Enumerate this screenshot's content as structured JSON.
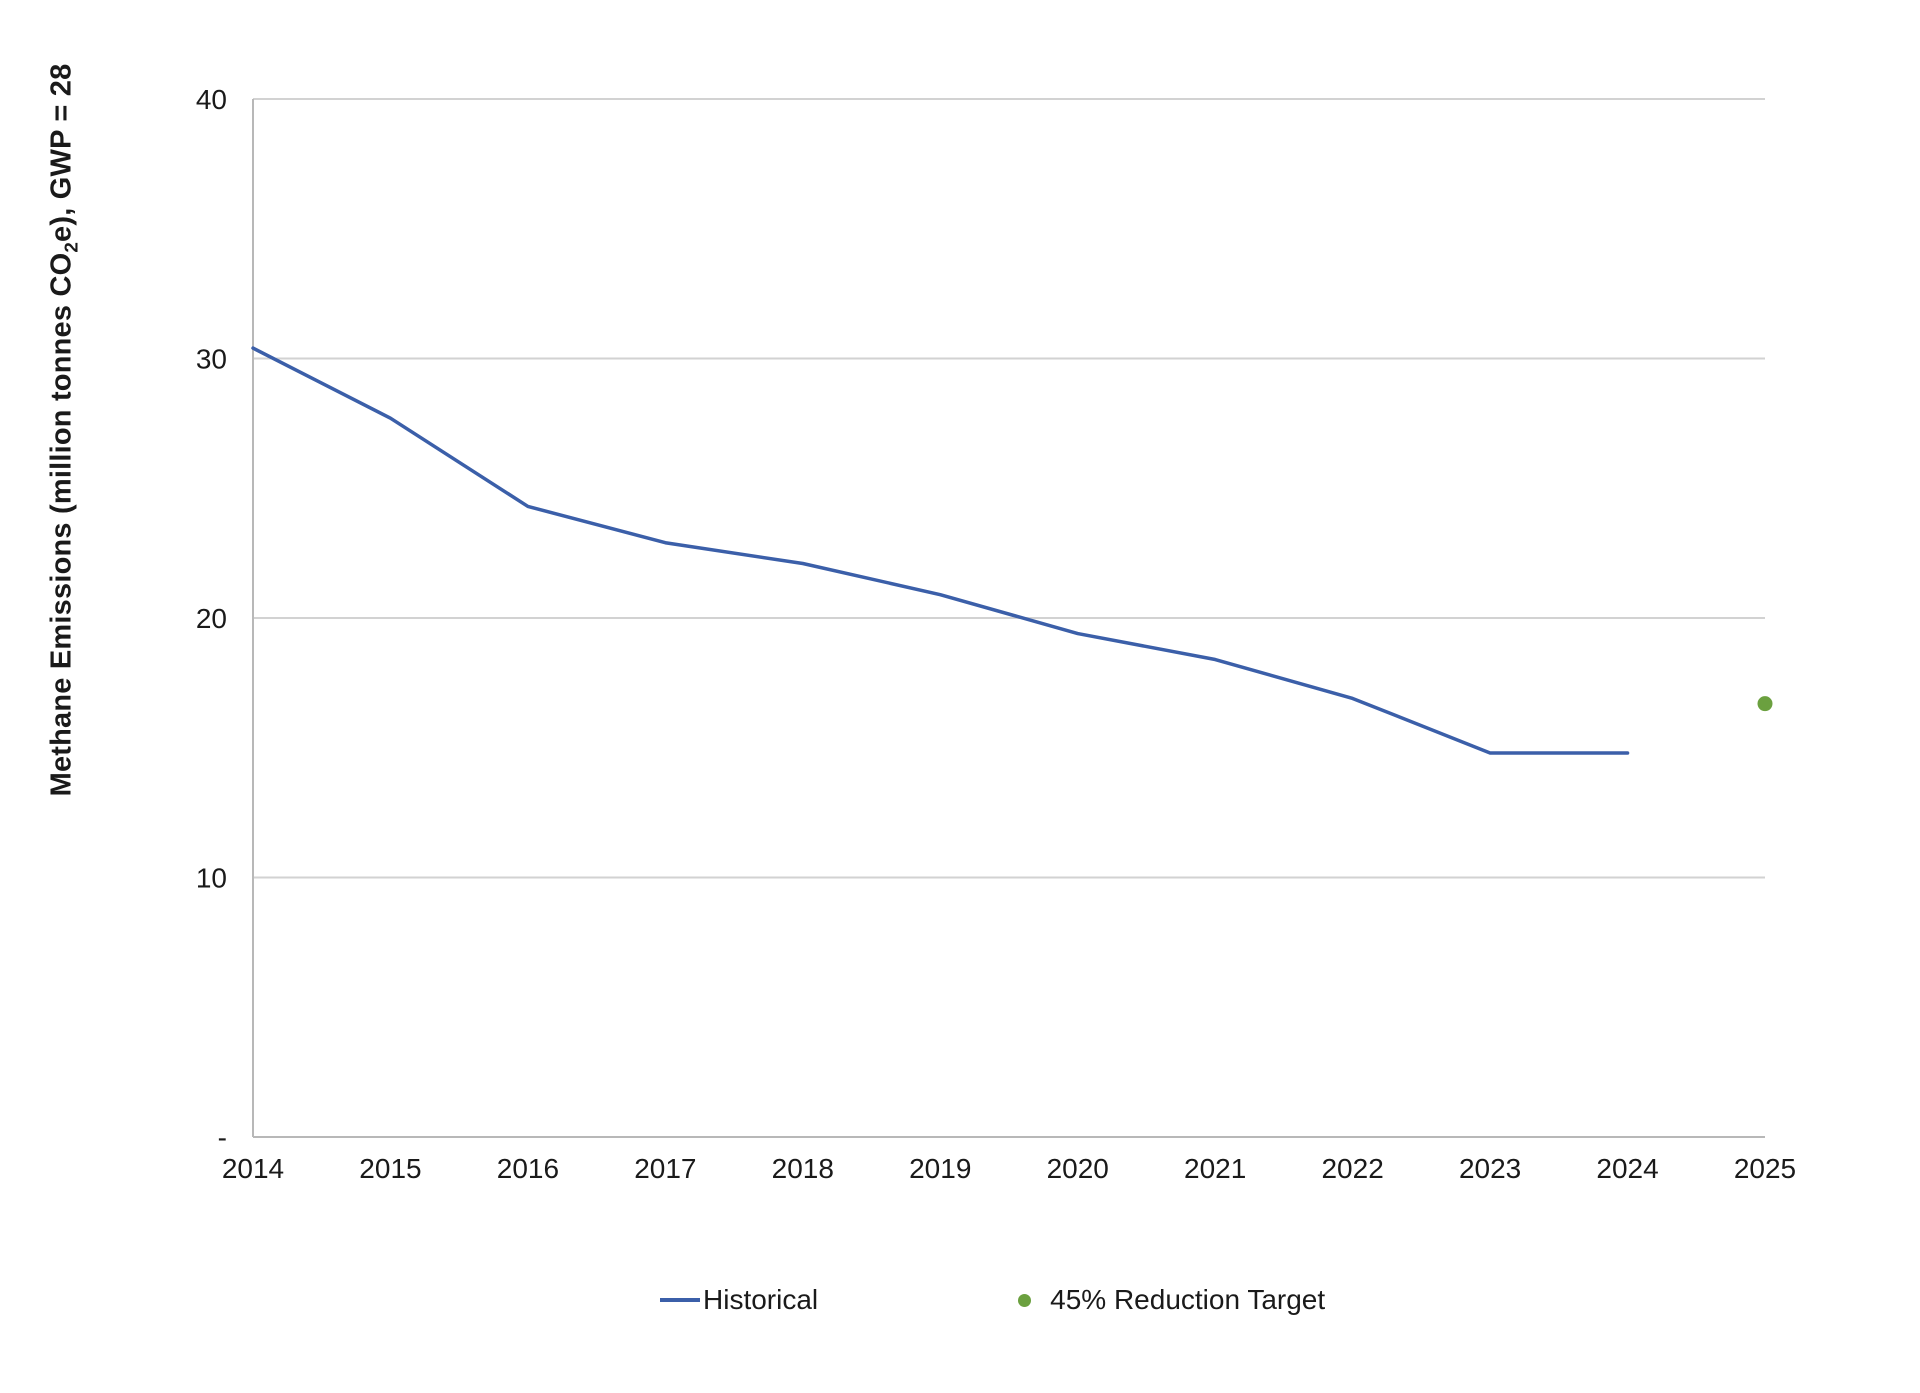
{
  "y_axis": {
    "title": {
      "pre": "Methane Emissions (million tonnes CO",
      "sub": "2",
      "post": "e), GWP = 28"
    },
    "ticks": [
      {
        "label": "40",
        "value": 40
      },
      {
        "label": "30",
        "value": 30
      },
      {
        "label": "20",
        "value": 20
      },
      {
        "label": "10",
        "value": 10
      },
      {
        "label": "-",
        "value": 0
      }
    ]
  },
  "x_axis": {
    "ticks": [
      "2014",
      "2015",
      "2016",
      "2017",
      "2018",
      "2019",
      "2020",
      "2021",
      "2022",
      "2023",
      "2024",
      "2025"
    ]
  },
  "legend": [
    {
      "label": "Historical",
      "marker": "line"
    },
    {
      "label": "45% Reduction Target",
      "marker": "dot"
    }
  ],
  "colors": {
    "historical": "#3B5FA9",
    "target": "#6BA03F",
    "gridline": "#D2D2D2",
    "axis": "#B8B8B8",
    "text": "#1A1A1A"
  },
  "chart_data": {
    "type": "line",
    "title": "",
    "xlabel": "",
    "ylabel": "Methane Emissions (million tonnes CO2e), GWP = 28",
    "xlim": [
      2014,
      2025
    ],
    "ylim": [
      0,
      40
    ],
    "grid": "horizontal",
    "legend_position": "bottom",
    "series": [
      {
        "name": "Historical",
        "type": "line",
        "x": [
          2014,
          2015,
          2016,
          2017,
          2018,
          2019,
          2020,
          2021,
          2022,
          2023,
          2024
        ],
        "values": [
          30.4,
          27.7,
          24.3,
          22.9,
          22.1,
          20.9,
          19.4,
          18.4,
          16.9,
          14.8,
          14.8
        ]
      },
      {
        "name": "45% Reduction Target",
        "type": "scatter",
        "x": [
          2025
        ],
        "values": [
          16.7
        ]
      }
    ]
  }
}
